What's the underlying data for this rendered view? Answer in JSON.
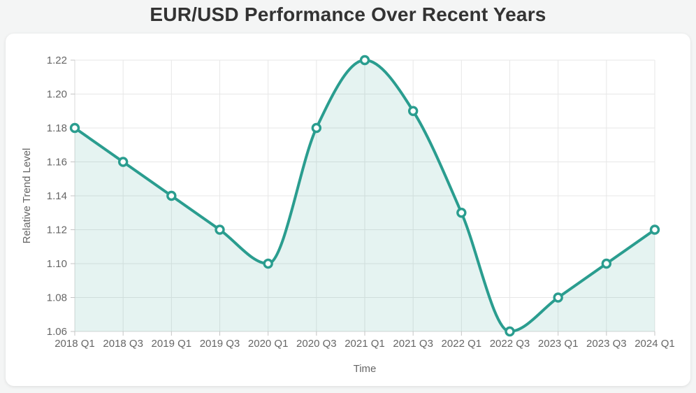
{
  "page": {
    "background_color": "#f4f5f5",
    "card_color": "#ffffff"
  },
  "chart_data": {
    "type": "line",
    "area_fill": true,
    "smooth": true,
    "title": "EUR/USD Performance Over Recent Years",
    "xlabel": "Time",
    "ylabel": "Relative Trend Level",
    "categories": [
      "2018 Q1",
      "2018 Q3",
      "2019 Q1",
      "2019 Q3",
      "2020 Q1",
      "2020 Q3",
      "2021 Q1",
      "2021 Q3",
      "2022 Q1",
      "2022 Q3",
      "2023 Q1",
      "2023 Q3",
      "2024 Q1"
    ],
    "values": [
      1.18,
      1.16,
      1.14,
      1.12,
      1.1,
      1.18,
      1.22,
      1.19,
      1.13,
      1.06,
      1.08,
      1.1,
      1.12
    ],
    "ylim": [
      1.06,
      1.22
    ],
    "ytick_step": 0.02,
    "ytick_decimals": 2,
    "grid": true,
    "legend": false,
    "colors": {
      "line": "#2a9d8f",
      "fill": "#2a9d8f",
      "fill_opacity": 0.12,
      "marker_fill": "#fcfefd",
      "grid": "#e7e7e7",
      "axis": "#d8d8d8",
      "tick": "#c4c4c4",
      "tick_text": "#666666",
      "title_text": "#333333"
    }
  }
}
